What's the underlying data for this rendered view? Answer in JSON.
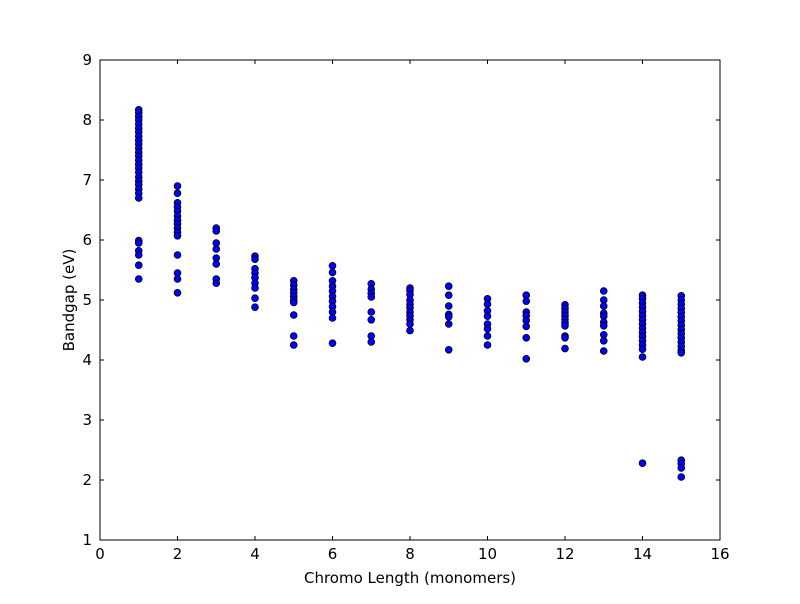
{
  "chart_data": {
    "type": "scatter",
    "title": "",
    "xlabel": "Chromo Length (monomers)",
    "ylabel": "Bandgap (eV)",
    "xlim": [
      0,
      16
    ],
    "ylim": [
      1,
      9
    ],
    "xticks": [
      "0",
      "2",
      "4",
      "6",
      "8",
      "10",
      "12",
      "14",
      "16"
    ],
    "yticks": [
      "1",
      "2",
      "3",
      "4",
      "5",
      "6",
      "7",
      "8",
      "9"
    ],
    "grid": false,
    "legend": "none",
    "marker_color": "#0000ff",
    "marker_edge_color": "#000000",
    "points": [
      {
        "x": 1,
        "y": 8.17
      },
      {
        "x": 1,
        "y": 8.12
      },
      {
        "x": 1,
        "y": 8.06
      },
      {
        "x": 1,
        "y": 8.0
      },
      {
        "x": 1,
        "y": 7.93
      },
      {
        "x": 1,
        "y": 7.86
      },
      {
        "x": 1,
        "y": 7.8
      },
      {
        "x": 1,
        "y": 7.73
      },
      {
        "x": 1,
        "y": 7.66
      },
      {
        "x": 1,
        "y": 7.6
      },
      {
        "x": 1,
        "y": 7.53
      },
      {
        "x": 1,
        "y": 7.46
      },
      {
        "x": 1,
        "y": 7.4
      },
      {
        "x": 1,
        "y": 7.33
      },
      {
        "x": 1,
        "y": 7.26
      },
      {
        "x": 1,
        "y": 7.2
      },
      {
        "x": 1,
        "y": 7.13
      },
      {
        "x": 1,
        "y": 7.05
      },
      {
        "x": 1,
        "y": 6.98
      },
      {
        "x": 1,
        "y": 6.92
      },
      {
        "x": 1,
        "y": 6.85
      },
      {
        "x": 1,
        "y": 6.78
      },
      {
        "x": 1,
        "y": 6.7
      },
      {
        "x": 1,
        "y": 5.99
      },
      {
        "x": 1,
        "y": 5.95
      },
      {
        "x": 1,
        "y": 5.82
      },
      {
        "x": 1,
        "y": 5.75
      },
      {
        "x": 1,
        "y": 5.58
      },
      {
        "x": 1,
        "y": 5.35
      },
      {
        "x": 2,
        "y": 6.9
      },
      {
        "x": 2,
        "y": 6.78
      },
      {
        "x": 2,
        "y": 6.62
      },
      {
        "x": 2,
        "y": 6.55
      },
      {
        "x": 2,
        "y": 6.48
      },
      {
        "x": 2,
        "y": 6.4
      },
      {
        "x": 2,
        "y": 6.33
      },
      {
        "x": 2,
        "y": 6.27
      },
      {
        "x": 2,
        "y": 6.2
      },
      {
        "x": 2,
        "y": 6.13
      },
      {
        "x": 2,
        "y": 6.07
      },
      {
        "x": 2,
        "y": 5.75
      },
      {
        "x": 2,
        "y": 5.45
      },
      {
        "x": 2,
        "y": 5.35
      },
      {
        "x": 2,
        "y": 5.12
      },
      {
        "x": 3,
        "y": 6.2
      },
      {
        "x": 3,
        "y": 6.15
      },
      {
        "x": 3,
        "y": 5.95
      },
      {
        "x": 3,
        "y": 5.85
      },
      {
        "x": 3,
        "y": 5.7
      },
      {
        "x": 3,
        "y": 5.6
      },
      {
        "x": 3,
        "y": 5.35
      },
      {
        "x": 3,
        "y": 5.28
      },
      {
        "x": 4,
        "y": 5.73
      },
      {
        "x": 4,
        "y": 5.68
      },
      {
        "x": 4,
        "y": 5.52
      },
      {
        "x": 4,
        "y": 5.45
      },
      {
        "x": 4,
        "y": 5.37
      },
      {
        "x": 4,
        "y": 5.28
      },
      {
        "x": 4,
        "y": 5.2
      },
      {
        "x": 4,
        "y": 5.03
      },
      {
        "x": 4,
        "y": 4.88
      },
      {
        "x": 5,
        "y": 5.32
      },
      {
        "x": 5,
        "y": 5.25
      },
      {
        "x": 5,
        "y": 5.18
      },
      {
        "x": 5,
        "y": 5.12
      },
      {
        "x": 5,
        "y": 5.06
      },
      {
        "x": 5,
        "y": 5.0
      },
      {
        "x": 5,
        "y": 4.96
      },
      {
        "x": 5,
        "y": 4.75
      },
      {
        "x": 5,
        "y": 4.4
      },
      {
        "x": 5,
        "y": 4.25
      },
      {
        "x": 6,
        "y": 5.57
      },
      {
        "x": 6,
        "y": 5.46
      },
      {
        "x": 6,
        "y": 5.32
      },
      {
        "x": 6,
        "y": 5.23
      },
      {
        "x": 6,
        "y": 5.15
      },
      {
        "x": 6,
        "y": 5.06
      },
      {
        "x": 6,
        "y": 4.98
      },
      {
        "x": 6,
        "y": 4.89
      },
      {
        "x": 6,
        "y": 4.8
      },
      {
        "x": 6,
        "y": 4.7
      },
      {
        "x": 6,
        "y": 4.28
      },
      {
        "x": 7,
        "y": 5.27
      },
      {
        "x": 7,
        "y": 5.18
      },
      {
        "x": 7,
        "y": 5.11
      },
      {
        "x": 7,
        "y": 5.05
      },
      {
        "x": 7,
        "y": 4.8
      },
      {
        "x": 7,
        "y": 4.67
      },
      {
        "x": 7,
        "y": 4.4
      },
      {
        "x": 7,
        "y": 4.3
      },
      {
        "x": 8,
        "y": 5.2
      },
      {
        "x": 8,
        "y": 5.16
      },
      {
        "x": 8,
        "y": 5.09
      },
      {
        "x": 8,
        "y": 5.0
      },
      {
        "x": 8,
        "y": 4.93
      },
      {
        "x": 8,
        "y": 4.87
      },
      {
        "x": 8,
        "y": 4.8
      },
      {
        "x": 8,
        "y": 4.74
      },
      {
        "x": 8,
        "y": 4.67
      },
      {
        "x": 8,
        "y": 4.6
      },
      {
        "x": 8,
        "y": 4.49
      },
      {
        "x": 9,
        "y": 5.23
      },
      {
        "x": 9,
        "y": 5.08
      },
      {
        "x": 9,
        "y": 4.9
      },
      {
        "x": 9,
        "y": 4.76
      },
      {
        "x": 9,
        "y": 4.72
      },
      {
        "x": 9,
        "y": 4.6
      },
      {
        "x": 9,
        "y": 4.17
      },
      {
        "x": 10,
        "y": 5.02
      },
      {
        "x": 10,
        "y": 4.93
      },
      {
        "x": 10,
        "y": 4.82
      },
      {
        "x": 10,
        "y": 4.73
      },
      {
        "x": 10,
        "y": 4.6
      },
      {
        "x": 10,
        "y": 4.52
      },
      {
        "x": 10,
        "y": 4.4
      },
      {
        "x": 10,
        "y": 4.25
      },
      {
        "x": 11,
        "y": 5.08
      },
      {
        "x": 11,
        "y": 4.98
      },
      {
        "x": 11,
        "y": 4.8
      },
      {
        "x": 11,
        "y": 4.74
      },
      {
        "x": 11,
        "y": 4.66
      },
      {
        "x": 11,
        "y": 4.56
      },
      {
        "x": 11,
        "y": 4.37
      },
      {
        "x": 11,
        "y": 4.02
      },
      {
        "x": 12,
        "y": 4.92
      },
      {
        "x": 12,
        "y": 4.86
      },
      {
        "x": 12,
        "y": 4.8
      },
      {
        "x": 12,
        "y": 4.74
      },
      {
        "x": 12,
        "y": 4.68
      },
      {
        "x": 12,
        "y": 4.62
      },
      {
        "x": 12,
        "y": 4.57
      },
      {
        "x": 12,
        "y": 4.4
      },
      {
        "x": 12,
        "y": 4.37
      },
      {
        "x": 12,
        "y": 4.19
      },
      {
        "x": 13,
        "y": 5.15
      },
      {
        "x": 13,
        "y": 5.0
      },
      {
        "x": 13,
        "y": 4.9
      },
      {
        "x": 13,
        "y": 4.78
      },
      {
        "x": 13,
        "y": 4.73
      },
      {
        "x": 13,
        "y": 4.63
      },
      {
        "x": 13,
        "y": 4.57
      },
      {
        "x": 13,
        "y": 4.42
      },
      {
        "x": 13,
        "y": 4.32
      },
      {
        "x": 13,
        "y": 4.15
      },
      {
        "x": 14,
        "y": 5.08
      },
      {
        "x": 14,
        "y": 5.02
      },
      {
        "x": 14,
        "y": 4.95
      },
      {
        "x": 14,
        "y": 4.88
      },
      {
        "x": 14,
        "y": 4.81
      },
      {
        "x": 14,
        "y": 4.74
      },
      {
        "x": 14,
        "y": 4.67
      },
      {
        "x": 14,
        "y": 4.6
      },
      {
        "x": 14,
        "y": 4.53
      },
      {
        "x": 14,
        "y": 4.46
      },
      {
        "x": 14,
        "y": 4.39
      },
      {
        "x": 14,
        "y": 4.32
      },
      {
        "x": 14,
        "y": 4.25
      },
      {
        "x": 14,
        "y": 4.18
      },
      {
        "x": 14,
        "y": 4.05
      },
      {
        "x": 14,
        "y": 2.28
      },
      {
        "x": 15,
        "y": 5.07
      },
      {
        "x": 15,
        "y": 5.0
      },
      {
        "x": 15,
        "y": 4.93
      },
      {
        "x": 15,
        "y": 4.86
      },
      {
        "x": 15,
        "y": 4.79
      },
      {
        "x": 15,
        "y": 4.72
      },
      {
        "x": 15,
        "y": 4.65
      },
      {
        "x": 15,
        "y": 4.58
      },
      {
        "x": 15,
        "y": 4.51
      },
      {
        "x": 15,
        "y": 4.44
      },
      {
        "x": 15,
        "y": 4.37
      },
      {
        "x": 15,
        "y": 4.3
      },
      {
        "x": 15,
        "y": 4.23
      },
      {
        "x": 15,
        "y": 4.16
      },
      {
        "x": 15,
        "y": 4.12
      },
      {
        "x": 15,
        "y": 2.33
      },
      {
        "x": 15,
        "y": 2.27
      },
      {
        "x": 15,
        "y": 2.2
      },
      {
        "x": 15,
        "y": 2.05
      }
    ]
  }
}
